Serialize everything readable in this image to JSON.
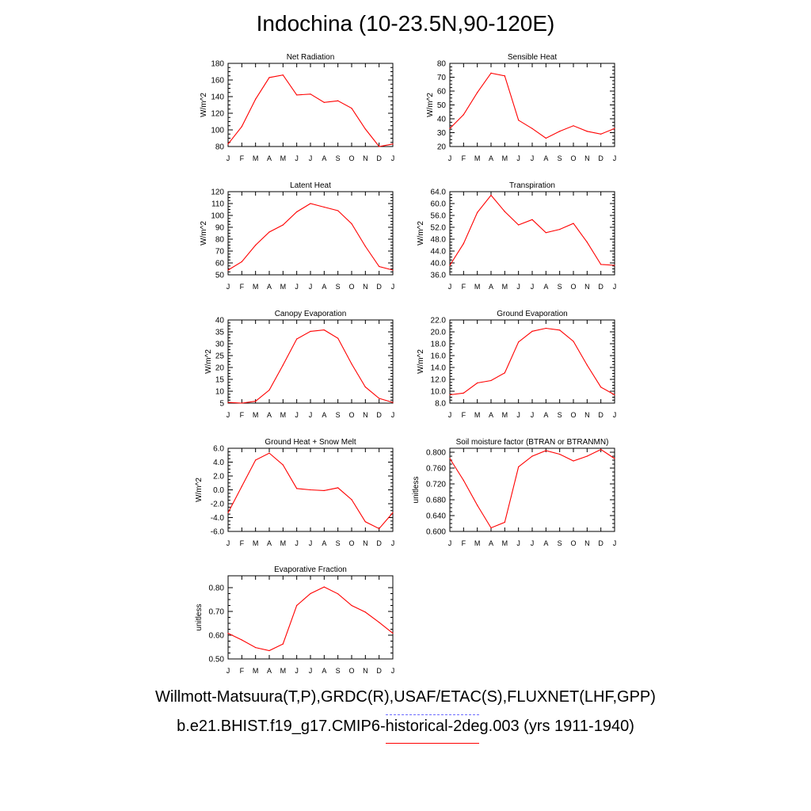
{
  "page": {
    "title": "Indochina (10-23.5N,90-120E)",
    "legend": {
      "obs_label": "Willmott-Matsuura(T,P),GRDC(R),USAF/ETAC(S),FLUXNET(LHF,GPP)",
      "model_label": "b.e21.BHIST.f19_g17.CMIP6-historical-2deg.003 (yrs 1911-1940)",
      "obs_color": "#6b6bff",
      "model_color": "#ff0000"
    }
  },
  "chart_data": [
    {
      "type": "line",
      "title": "Net Radiation",
      "ylabel": "W/m^2",
      "x": [
        "J",
        "F",
        "M",
        "A",
        "M",
        "J",
        "J",
        "A",
        "S",
        "O",
        "N",
        "D",
        "J"
      ],
      "ylim": [
        80,
        180
      ],
      "yticks": [
        "80",
        "100",
        "120",
        "140",
        "160",
        "180"
      ],
      "series": [
        {
          "values": [
            83,
            104,
            137,
            163,
            166,
            142,
            143,
            133,
            135,
            126,
            101,
            80,
            83
          ]
        }
      ]
    },
    {
      "type": "line",
      "title": "Sensible Heat",
      "ylabel": "W/m^2",
      "x": [
        "J",
        "F",
        "M",
        "A",
        "M",
        "J",
        "J",
        "A",
        "S",
        "O",
        "N",
        "D",
        "J"
      ],
      "ylim": [
        20,
        80
      ],
      "yticks": [
        "20",
        "30",
        "40",
        "50",
        "60",
        "70",
        "80"
      ],
      "series": [
        {
          "values": [
            33,
            43,
            59,
            73,
            71,
            39,
            33,
            26,
            31,
            35,
            31,
            29,
            33
          ]
        }
      ]
    },
    {
      "type": "line",
      "title": "Latent Heat",
      "ylabel": "W/m^2",
      "x": [
        "J",
        "F",
        "M",
        "A",
        "M",
        "J",
        "J",
        "A",
        "S",
        "O",
        "N",
        "D",
        "J"
      ],
      "ylim": [
        50,
        120
      ],
      "yticks": [
        "50",
        "60",
        "70",
        "80",
        "90",
        "100",
        "110",
        "120"
      ],
      "series": [
        {
          "values": [
            54,
            61,
            75,
            86,
            92,
            103,
            110,
            107,
            104,
            93,
            74,
            57,
            54
          ]
        }
      ]
    },
    {
      "type": "line",
      "title": "Transpiration",
      "ylabel": "W/m^2",
      "x": [
        "J",
        "F",
        "M",
        "A",
        "M",
        "J",
        "J",
        "A",
        "S",
        "O",
        "N",
        "D",
        "J"
      ],
      "ylim": [
        36,
        64
      ],
      "yticks": [
        "36.0",
        "40.0",
        "44.0",
        "48.0",
        "52.0",
        "56.0",
        "60.0",
        "64.0"
      ],
      "series": [
        {
          "values": [
            39.2,
            46.5,
            57.0,
            62.8,
            57.3,
            52.8,
            54.6,
            50.2,
            51.3,
            53.3,
            47.0,
            39.5,
            39.2
          ]
        }
      ]
    },
    {
      "type": "line",
      "title": "Canopy Evaporation",
      "ylabel": "W/m^2",
      "x": [
        "J",
        "F",
        "M",
        "A",
        "M",
        "J",
        "J",
        "A",
        "S",
        "O",
        "N",
        "D",
        "J"
      ],
      "ylim": [
        5,
        40
      ],
      "yticks": [
        "5",
        "10",
        "15",
        "20",
        "25",
        "30",
        "35",
        "40"
      ],
      "series": [
        {
          "values": [
            5.3,
            5.0,
            5.8,
            10.5,
            21.0,
            32.0,
            35.2,
            35.8,
            32.3,
            21.5,
            11.8,
            7.0,
            5.3
          ]
        }
      ]
    },
    {
      "type": "line",
      "title": "Ground Evaporation",
      "ylabel": "W/m^2",
      "x": [
        "J",
        "F",
        "M",
        "A",
        "M",
        "J",
        "J",
        "A",
        "S",
        "O",
        "N",
        "D",
        "J"
      ],
      "ylim": [
        8,
        22
      ],
      "yticks": [
        "8.0",
        "10.0",
        "12.0",
        "14.0",
        "16.0",
        "18.0",
        "20.0",
        "22.0"
      ],
      "series": [
        {
          "values": [
            9.4,
            9.7,
            11.4,
            11.8,
            13.1,
            18.3,
            20.1,
            20.6,
            20.3,
            18.4,
            14.4,
            10.7,
            9.4
          ]
        }
      ]
    },
    {
      "type": "line",
      "title": "Ground Heat + Snow Melt",
      "ylabel": "W/m^2",
      "x": [
        "J",
        "F",
        "M",
        "A",
        "M",
        "J",
        "J",
        "A",
        "S",
        "O",
        "N",
        "D",
        "J"
      ],
      "ylim": [
        -6,
        6
      ],
      "yticks": [
        "-6.0",
        "-4.0",
        "-2.0",
        "0.0",
        "2.0",
        "4.0",
        "6.0"
      ],
      "series": [
        {
          "values": [
            -3.3,
            0.5,
            4.3,
            5.3,
            3.6,
            0.2,
            0.0,
            -0.1,
            0.3,
            -1.4,
            -4.6,
            -5.6,
            -3.3
          ]
        }
      ]
    },
    {
      "type": "line",
      "title": "Soil moisture factor (BTRAN or BTRANMN)",
      "ylabel": "unitless",
      "x": [
        "J",
        "F",
        "M",
        "A",
        "M",
        "J",
        "J",
        "A",
        "S",
        "O",
        "N",
        "D",
        "J"
      ],
      "ylim": [
        0.6,
        0.81
      ],
      "yticks": [
        "0.600",
        "0.640",
        "0.680",
        "0.720",
        "0.760",
        "0.800"
      ],
      "series": [
        {
          "values": [
            0.784,
            0.729,
            0.666,
            0.609,
            0.623,
            0.763,
            0.79,
            0.804,
            0.795,
            0.778,
            0.79,
            0.807,
            0.784
          ]
        }
      ]
    },
    {
      "type": "line",
      "title": "Evaporative Fraction",
      "ylabel": "unitless",
      "x": [
        "J",
        "F",
        "M",
        "A",
        "M",
        "J",
        "J",
        "A",
        "S",
        "O",
        "N",
        "D",
        "J"
      ],
      "ylim": [
        0.5,
        0.85
      ],
      "yticks": [
        "0.50",
        "0.60",
        "0.70",
        "0.80"
      ],
      "series": [
        {
          "values": [
            0.608,
            0.58,
            0.548,
            0.535,
            0.563,
            0.725,
            0.775,
            0.803,
            0.774,
            0.725,
            0.697,
            0.654,
            0.608
          ]
        }
      ]
    }
  ]
}
